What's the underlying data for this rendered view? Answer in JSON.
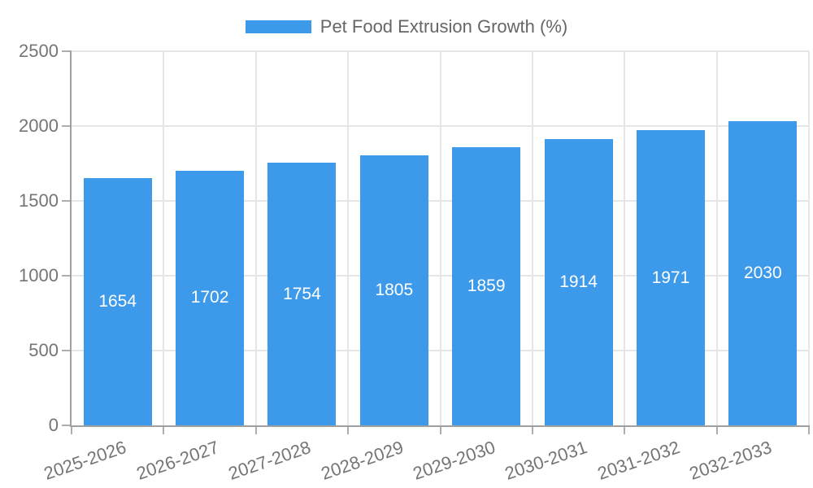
{
  "chart_data": {
    "type": "bar",
    "title": "Pet Food Extrusion Growth (%)",
    "categories": [
      "2025-2026",
      "2026-2027",
      "2027-2028",
      "2028-2029",
      "2029-2030",
      "2030-2031",
      "2031-2032",
      "2032-2033"
    ],
    "values": [
      1654,
      1702,
      1754,
      1805,
      1859,
      1914,
      1971,
      2030
    ],
    "xlabel": "",
    "ylabel": "",
    "ylim": [
      0,
      2500
    ],
    "yticks": [
      0,
      500,
      1000,
      1500,
      2000,
      2500
    ],
    "grid": true,
    "legend_position": "top",
    "bar_color": "#3D9AEA",
    "value_label_color": "#FFFFFF",
    "axis_text_color": "#757575",
    "grid_color": "#E6E6E6",
    "axis_line_color": "#A0A0A0"
  }
}
